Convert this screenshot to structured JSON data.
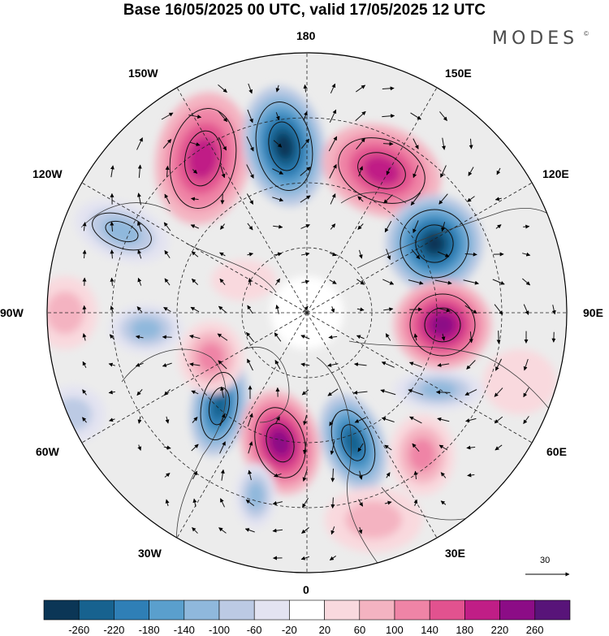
{
  "header": {
    "title": "Base 16/05/2025 00 UTC, valid 17/05/2025 12 UTC",
    "brand": "MODES",
    "brand_mark": "©"
  },
  "longitude_labels": [
    {
      "id": "180",
      "text": "180"
    },
    {
      "id": "150e",
      "text": "150E"
    },
    {
      "id": "120e",
      "text": "120E"
    },
    {
      "id": "90e",
      "text": "90E"
    },
    {
      "id": "60e",
      "text": "60E"
    },
    {
      "id": "30e",
      "text": "30E"
    },
    {
      "id": "0",
      "text": "0"
    },
    {
      "id": "30w",
      "text": "30W"
    },
    {
      "id": "60w",
      "text": "60W"
    },
    {
      "id": "90w",
      "text": "90W"
    },
    {
      "id": "120w",
      "text": "120W"
    },
    {
      "id": "150w",
      "text": "150W"
    }
  ],
  "reference_vector": {
    "value": "30"
  },
  "colorbar": {
    "ticks": [
      "-260",
      "-220",
      "-180",
      "-140",
      "-100",
      "-60",
      "-20",
      "20",
      "60",
      "100",
      "140",
      "180",
      "220",
      "260"
    ],
    "colors": [
      "#0b3656",
      "#17628f",
      "#2f7fb6",
      "#5a9fcd",
      "#8fb8dc",
      "#bccae4",
      "#e3e3f1",
      "#ffffff",
      "#f9d9de",
      "#f4b3c1",
      "#ef84a6",
      "#e2528f",
      "#c01e86",
      "#8c0c86",
      "#581479"
    ]
  },
  "colors": {
    "land_outline": "#3c3c3c",
    "background_field": "#eeeeee"
  }
}
